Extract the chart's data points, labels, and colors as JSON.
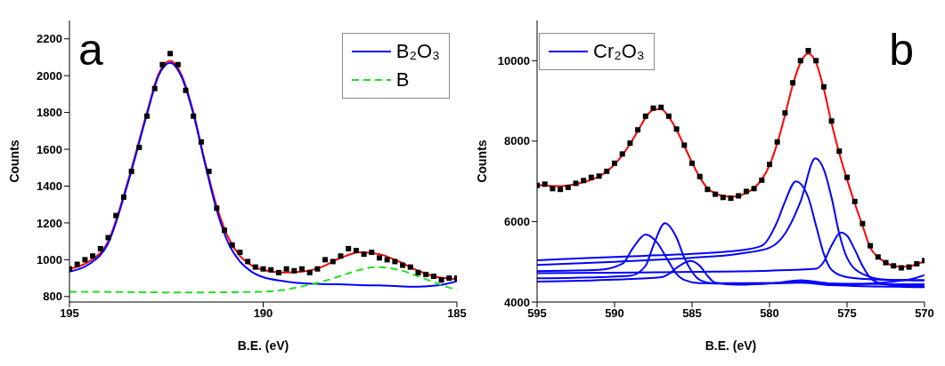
{
  "chart_data": [
    {
      "type": "line",
      "xlabel": "B.E. (eV)",
      "ylabel": "Counts",
      "xlim": [
        195,
        185
      ],
      "xticks": [
        195,
        190,
        185
      ],
      "ylim": [
        770,
        2300
      ],
      "yticks": [
        800,
        1000,
        1200,
        1400,
        1600,
        1800,
        2000,
        2200
      ],
      "legend": "top right",
      "annotations": [
        "a"
      ],
      "series": [
        {
          "type": "scatter",
          "marker": "square",
          "color": "#000000",
          "x": [
            195.0,
            194.8,
            194.6,
            194.4,
            194.2,
            194.0,
            193.8,
            193.6,
            193.4,
            193.2,
            193.0,
            192.8,
            192.6,
            192.4,
            192.2,
            192.0,
            191.8,
            191.6,
            191.4,
            191.2,
            191.0,
            190.8,
            190.6,
            190.4,
            190.2,
            190.0,
            189.8,
            189.6,
            189.4,
            189.2,
            189.0,
            188.8,
            188.6,
            188.4,
            188.2,
            188.0,
            187.8,
            187.6,
            187.4,
            187.2,
            187.0,
            186.8,
            186.6,
            186.4,
            186.2,
            186.0,
            185.8,
            185.6,
            185.4,
            185.2,
            185.0
          ],
          "values": [
            950,
            975,
            1000,
            1020,
            1060,
            1120,
            1240,
            1340,
            1480,
            1610,
            1780,
            1930,
            2060,
            2120,
            2060,
            1920,
            1780,
            1640,
            1480,
            1280,
            1160,
            1080,
            1040,
            990,
            960,
            950,
            945,
            930,
            950,
            940,
            950,
            930,
            950,
            1000,
            990,
            1020,
            1060,
            1050,
            1030,
            1040,
            1010,
            1000,
            990,
            970,
            960,
            930,
            920,
            910,
            890,
            900,
            900
          ]
        },
        {
          "color": "#ff0000",
          "x": [
            195,
            194.5,
            194,
            193.5,
            193,
            192.7,
            192.4,
            192.1,
            191.8,
            191.5,
            191.2,
            190.9,
            190.6,
            190.3,
            190,
            189.5,
            189,
            188.5,
            188,
            187.5,
            187,
            186.5,
            186,
            185.5,
            185
          ],
          "values": [
            950,
            990,
            1100,
            1420,
            1800,
            2010,
            2080,
            2000,
            1800,
            1530,
            1290,
            1120,
            1020,
            970,
            945,
            930,
            935,
            960,
            1010,
            1040,
            1030,
            990,
            940,
            905,
            895
          ]
        },
        {
          "name": "B₂O₃",
          "color": "#0000ff",
          "x": [
            195,
            194.5,
            194,
            193.5,
            193,
            192.7,
            192.4,
            192.1,
            191.8,
            191.5,
            191.2,
            190.9,
            190.6,
            190.3,
            190,
            189.5,
            189,
            188.5,
            188,
            187.5,
            187,
            186.5,
            186,
            185.5,
            185
          ],
          "values": [
            935,
            975,
            1090,
            1410,
            1790,
            2000,
            2070,
            1990,
            1790,
            1520,
            1270,
            1090,
            990,
            935,
            905,
            885,
            872,
            868,
            866,
            862,
            860,
            856,
            853,
            860,
            882
          ]
        },
        {
          "name": "B",
          "color": "#22dd22",
          "line_style": "dashed",
          "x": [
            195,
            194,
            193,
            192,
            191,
            190,
            189.5,
            189,
            188.5,
            188,
            187.5,
            187.1,
            186.5,
            186,
            185.5,
            185
          ],
          "values": [
            826,
            825,
            823,
            822,
            823,
            826,
            835,
            855,
            880,
            912,
            945,
            960,
            945,
            910,
            870,
            835
          ]
        }
      ]
    },
    {
      "type": "line",
      "xlabel": "B.E. (eV)",
      "ylabel": "Counts",
      "xlim": [
        595,
        570
      ],
      "xticks": [
        595,
        590,
        585,
        580,
        575,
        570
      ],
      "ylim": [
        4000,
        11000
      ],
      "yticks": [
        4000,
        6000,
        8000,
        10000
      ],
      "legend": "top left",
      "annotations": [
        "b"
      ],
      "series": [
        {
          "type": "scatter",
          "marker": "square",
          "color": "#000000",
          "x": [
            595,
            594.5,
            594,
            593.5,
            593,
            592.5,
            592,
            591.5,
            591,
            590.5,
            590,
            589.5,
            589,
            588.5,
            588,
            587.5,
            587,
            586.5,
            586,
            585.5,
            585,
            584.5,
            584,
            583.5,
            583,
            582.5,
            582,
            581.5,
            581,
            580.5,
            580,
            579.5,
            579,
            578.5,
            578,
            577.5,
            577,
            576.5,
            576,
            575.5,
            575,
            574.5,
            574,
            573.5,
            573,
            572.5,
            572,
            571.5,
            571,
            570.5,
            570
          ],
          "values": [
            6900,
            6930,
            6820,
            6800,
            6850,
            6950,
            7020,
            7100,
            7130,
            7250,
            7450,
            7680,
            7950,
            8280,
            8620,
            8820,
            8840,
            8620,
            8300,
            7900,
            7450,
            7120,
            6800,
            6680,
            6600,
            6580,
            6640,
            6750,
            6820,
            7030,
            7420,
            7980,
            8700,
            9450,
            10000,
            10250,
            10000,
            9350,
            8500,
            7750,
            7100,
            6500,
            5950,
            5400,
            5120,
            4980,
            4900,
            4850,
            4870,
            4950,
            5030
          ]
        },
        {
          "color": "#ff0000",
          "x": [
            595,
            594.5,
            594,
            593.5,
            593,
            592.5,
            592,
            591.5,
            591,
            590.5,
            590,
            589.5,
            589,
            588.5,
            588,
            587.5,
            587,
            586.5,
            586,
            585.5,
            585,
            584.5,
            584,
            583.5,
            583,
            582.5,
            582,
            581.5,
            581,
            580.5,
            580,
            579.5,
            579,
            578.5,
            578,
            577.5,
            577,
            576.5,
            576,
            575.5,
            575,
            574.5,
            574,
            573.5,
            573,
            572.5,
            572,
            571.5,
            571,
            570.5,
            570
          ],
          "values": [
            6910,
            6900,
            6880,
            6880,
            6900,
            6930,
            6980,
            7040,
            7120,
            7250,
            7420,
            7650,
            7930,
            8250,
            8580,
            8780,
            8800,
            8600,
            8280,
            7880,
            7470,
            7100,
            6830,
            6700,
            6640,
            6620,
            6640,
            6710,
            6830,
            7050,
            7400,
            7950,
            8650,
            9400,
            9950,
            10180,
            9950,
            9300,
            8450,
            7700,
            7050,
            6450,
            5900,
            5350,
            5120,
            4980,
            4900,
            4880,
            4890,
            4940,
            5020
          ]
        },
        {
          "name": "Cr₂O₃",
          "color": "#0000ff",
          "x": [
            595,
            590,
            585,
            582,
            580.5,
            579.5,
            579,
            578.3,
            577.5,
            577,
            576.5,
            576,
            575,
            573,
            570
          ],
          "values": [
            5040,
            5120,
            5200,
            5280,
            5400,
            6000,
            6500,
            7000,
            6600,
            5900,
            5200,
            4800,
            4620,
            4560,
            4540
          ]
        },
        {
          "color": "#0000ff",
          "x": [
            595,
            590,
            585,
            582,
            580,
            579,
            578,
            577.05,
            576.5,
            576,
            575.5,
            575,
            574,
            572.5,
            570
          ],
          "values": [
            4920,
            5000,
            5100,
            5200,
            5350,
            5700,
            6500,
            7570,
            7300,
            6600,
            5700,
            5100,
            4700,
            4560,
            4540
          ]
        },
        {
          "color": "#0000ff",
          "x": [
            595,
            590,
            585,
            580,
            577,
            576.5,
            576,
            575.4,
            575,
            574.5,
            574,
            573.5,
            573,
            572,
            570
          ],
          "values": [
            4720,
            4730,
            4750,
            4780,
            4830,
            5000,
            5400,
            5730,
            5650,
            5300,
            4900,
            4600,
            4480,
            4420,
            4400
          ]
        },
        {
          "color": "#0000ff",
          "x": [
            595,
            591,
            589.5,
            588.8,
            588,
            587.3,
            586.5,
            586,
            585.5,
            584.5,
            580,
            578,
            576,
            570
          ],
          "values": [
            4770,
            4800,
            4950,
            5350,
            5680,
            5500,
            5000,
            4700,
            4550,
            4470,
            4470,
            4540,
            4460,
            4440
          ]
        },
        {
          "color": "#0000ff",
          "x": [
            595,
            591,
            589,
            588,
            587.5,
            586.75,
            586,
            585.5,
            585,
            584.5,
            583.5,
            580,
            578,
            576,
            570
          ],
          "values": [
            4590,
            4620,
            4650,
            4900,
            5400,
            5960,
            5600,
            5100,
            4750,
            4550,
            4460,
            4470,
            4480,
            4420,
            4370
          ]
        },
        {
          "color": "#0000ff",
          "x": [
            595,
            590,
            587,
            586.5,
            586,
            585.1,
            584.5,
            584,
            583.5,
            582,
            579,
            578,
            575,
            571,
            570
          ],
          "values": [
            4510,
            4560,
            4620,
            4700,
            4850,
            5020,
            4900,
            4650,
            4480,
            4430,
            4480,
            4500,
            4440,
            4560,
            4670
          ]
        }
      ]
    }
  ]
}
